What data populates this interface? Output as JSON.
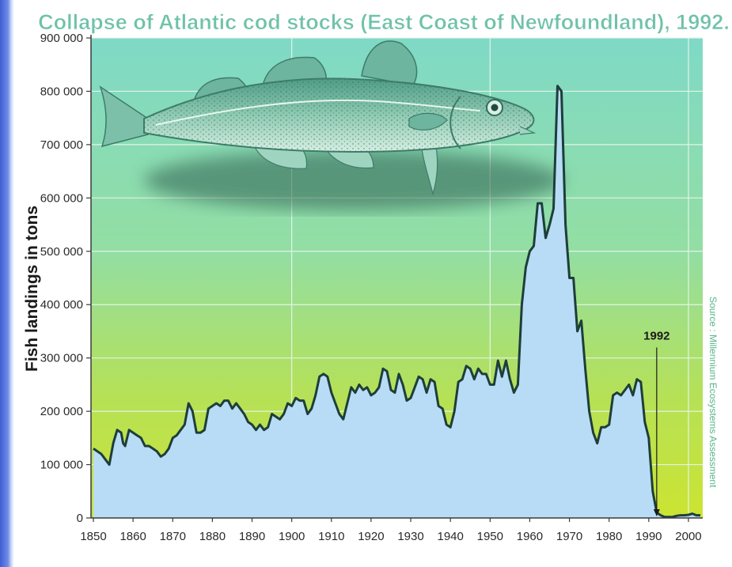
{
  "chart_data": {
    "type": "area",
    "title": "Collapse of Atlantic cod stocks (East Coast of Newfoundland), 1992.",
    "ylabel": "Fish landings in tons",
    "xlabel": "",
    "source": "Source : Millennium Ecosystems Assessment",
    "xlim": [
      1850,
      2003
    ],
    "ylim": [
      0,
      900000
    ],
    "x_ticks": [
      "1850",
      "1860",
      "1870",
      "1880",
      "1890",
      "1900",
      "1910",
      "1920",
      "1930",
      "1940",
      "1950",
      "1960",
      "1970",
      "1980",
      "1990",
      "2000"
    ],
    "y_ticks": [
      "0",
      "100 000",
      "200 000",
      "300 000",
      "400 000",
      "500 000",
      "600 000",
      "700 000",
      "800 000",
      "900 000"
    ],
    "y_tick_values": [
      0,
      100000,
      200000,
      300000,
      400000,
      500000,
      600000,
      700000,
      800000,
      900000
    ],
    "x_tick_values": [
      1850,
      1860,
      1870,
      1880,
      1890,
      1900,
      1910,
      1920,
      1930,
      1940,
      1950,
      1960,
      1970,
      1980,
      1990,
      2000
    ],
    "grid": true,
    "annotation": {
      "label": "1992",
      "x": 1992,
      "y_from": 290000,
      "y_to": 0
    },
    "colors": {
      "area_fill": "#b8dcf6",
      "line": "#1e3e3a",
      "bg_top": "#7fd8c4",
      "bg_bottom": "#c8e23a",
      "grid": "#d6ecdc",
      "title": "#6fc2a8"
    },
    "series": [
      {
        "points": [
          [
            1850,
            130000
          ],
          [
            1852,
            120000
          ],
          [
            1853,
            110000
          ],
          [
            1854,
            100000
          ],
          [
            1855,
            140000
          ],
          [
            1856,
            165000
          ],
          [
            1857,
            160000
          ],
          [
            1857.5,
            140000
          ],
          [
            1858,
            135000
          ],
          [
            1859,
            165000
          ],
          [
            1860,
            160000
          ],
          [
            1861,
            155000
          ],
          [
            1862,
            150000
          ],
          [
            1863,
            135000
          ],
          [
            1864,
            135000
          ],
          [
            1865,
            130000
          ],
          [
            1866,
            125000
          ],
          [
            1867,
            115000
          ],
          [
            1868,
            120000
          ],
          [
            1869,
            130000
          ],
          [
            1870,
            150000
          ],
          [
            1871,
            155000
          ],
          [
            1872,
            165000
          ],
          [
            1873,
            175000
          ],
          [
            1874,
            215000
          ],
          [
            1875,
            200000
          ],
          [
            1876,
            160000
          ],
          [
            1877,
            160000
          ],
          [
            1878,
            165000
          ],
          [
            1879,
            205000
          ],
          [
            1880,
            210000
          ],
          [
            1881,
            215000
          ],
          [
            1882,
            210000
          ],
          [
            1883,
            220000
          ],
          [
            1884,
            220000
          ],
          [
            1885,
            205000
          ],
          [
            1886,
            215000
          ],
          [
            1887,
            205000
          ],
          [
            1888,
            195000
          ],
          [
            1889,
            180000
          ],
          [
            1890,
            175000
          ],
          [
            1891,
            165000
          ],
          [
            1892,
            175000
          ],
          [
            1893,
            165000
          ],
          [
            1894,
            170000
          ],
          [
            1895,
            195000
          ],
          [
            1896,
            190000
          ],
          [
            1897,
            185000
          ],
          [
            1898,
            195000
          ],
          [
            1899,
            215000
          ],
          [
            1900,
            210000
          ],
          [
            1901,
            225000
          ],
          [
            1902,
            220000
          ],
          [
            1903,
            220000
          ],
          [
            1904,
            195000
          ],
          [
            1905,
            205000
          ],
          [
            1906,
            230000
          ],
          [
            1907,
            265000
          ],
          [
            1908,
            270000
          ],
          [
            1909,
            265000
          ],
          [
            1910,
            235000
          ],
          [
            1911,
            215000
          ],
          [
            1912,
            195000
          ],
          [
            1913,
            185000
          ],
          [
            1914,
            215000
          ],
          [
            1915,
            245000
          ],
          [
            1916,
            235000
          ],
          [
            1917,
            250000
          ],
          [
            1918,
            240000
          ],
          [
            1919,
            245000
          ],
          [
            1920,
            230000
          ],
          [
            1921,
            235000
          ],
          [
            1922,
            245000
          ],
          [
            1923,
            280000
          ],
          [
            1924,
            275000
          ],
          [
            1925,
            240000
          ],
          [
            1926,
            235000
          ],
          [
            1927,
            270000
          ],
          [
            1928,
            250000
          ],
          [
            1929,
            220000
          ],
          [
            1930,
            225000
          ],
          [
            1931,
            245000
          ],
          [
            1932,
            265000
          ],
          [
            1933,
            260000
          ],
          [
            1934,
            235000
          ],
          [
            1935,
            260000
          ],
          [
            1936,
            255000
          ],
          [
            1937,
            210000
          ],
          [
            1938,
            205000
          ],
          [
            1939,
            175000
          ],
          [
            1940,
            170000
          ],
          [
            1941,
            200000
          ],
          [
            1942,
            255000
          ],
          [
            1943,
            260000
          ],
          [
            1944,
            285000
          ],
          [
            1945,
            280000
          ],
          [
            1946,
            260000
          ],
          [
            1947,
            280000
          ],
          [
            1948,
            270000
          ],
          [
            1949,
            270000
          ],
          [
            1950,
            250000
          ],
          [
            1951,
            250000
          ],
          [
            1952,
            295000
          ],
          [
            1953,
            265000
          ],
          [
            1954,
            295000
          ],
          [
            1955,
            260000
          ],
          [
            1956,
            235000
          ],
          [
            1957,
            250000
          ],
          [
            1958,
            400000
          ],
          [
            1959,
            470000
          ],
          [
            1960,
            500000
          ],
          [
            1961,
            510000
          ],
          [
            1962,
            590000
          ],
          [
            1963,
            590000
          ],
          [
            1964,
            525000
          ],
          [
            1965,
            550000
          ],
          [
            1966,
            580000
          ],
          [
            1967,
            810000
          ],
          [
            1968,
            800000
          ],
          [
            1969,
            550000
          ],
          [
            1970,
            450000
          ],
          [
            1971,
            450000
          ],
          [
            1972,
            350000
          ],
          [
            1973,
            370000
          ],
          [
            1974,
            280000
          ],
          [
            1975,
            200000
          ],
          [
            1976,
            160000
          ],
          [
            1977,
            140000
          ],
          [
            1978,
            170000
          ],
          [
            1979,
            170000
          ],
          [
            1980,
            175000
          ],
          [
            1981,
            230000
          ],
          [
            1982,
            235000
          ],
          [
            1983,
            230000
          ],
          [
            1984,
            240000
          ],
          [
            1985,
            250000
          ],
          [
            1986,
            230000
          ],
          [
            1987,
            260000
          ],
          [
            1988,
            255000
          ],
          [
            1989,
            180000
          ],
          [
            1990,
            150000
          ],
          [
            1991,
            50000
          ],
          [
            1992,
            10000
          ],
          [
            1993,
            5000
          ],
          [
            1994,
            2000
          ],
          [
            1995,
            2000
          ],
          [
            1996,
            2000
          ],
          [
            1997,
            4000
          ],
          [
            1998,
            5000
          ],
          [
            1999,
            5000
          ],
          [
            2000,
            6000
          ],
          [
            2001,
            8000
          ],
          [
            2002,
            5000
          ],
          [
            2003,
            5000
          ]
        ]
      }
    ]
  }
}
